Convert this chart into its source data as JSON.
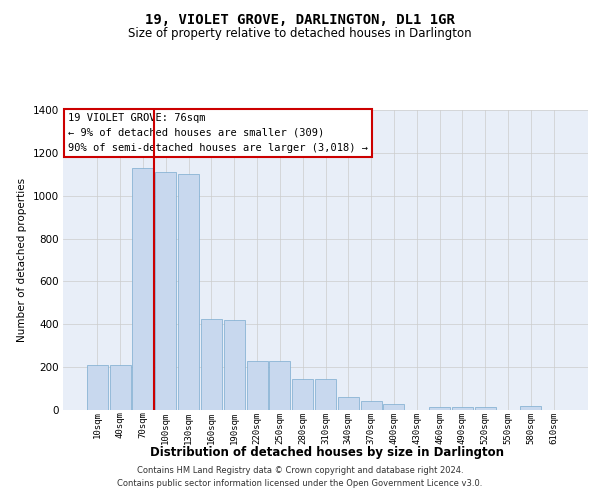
{
  "title": "19, VIOLET GROVE, DARLINGTON, DL1 1GR",
  "subtitle": "Size of property relative to detached houses in Darlington",
  "xlabel": "Distribution of detached houses by size in Darlington",
  "ylabel": "Number of detached properties",
  "footer_line1": "Contains HM Land Registry data © Crown copyright and database right 2024.",
  "footer_line2": "Contains public sector information licensed under the Open Government Licence v3.0.",
  "annotation_line1": "19 VIOLET GROVE: 76sqm",
  "annotation_line2": "← 9% of detached houses are smaller (309)",
  "annotation_line3": "90% of semi-detached houses are larger (3,018) →",
  "bar_color": "#c8d8ee",
  "bar_edge_color": "#7aabcf",
  "grid_color": "#cccccc",
  "background_color": "#e8eef8",
  "vline_color": "#cc0000",
  "vline_x": 2.5,
  "annotation_box_edgecolor": "#cc0000",
  "categories": [
    "10sqm",
    "40sqm",
    "70sqm",
    "100sqm",
    "130sqm",
    "160sqm",
    "190sqm",
    "220sqm",
    "250sqm",
    "280sqm",
    "310sqm",
    "340sqm",
    "370sqm",
    "400sqm",
    "430sqm",
    "460sqm",
    "490sqm",
    "520sqm",
    "550sqm",
    "580sqm",
    "610sqm"
  ],
  "values": [
    210,
    210,
    1130,
    1110,
    1100,
    425,
    420,
    230,
    230,
    145,
    145,
    60,
    40,
    30,
    0,
    15,
    15,
    15,
    0,
    20,
    0
  ],
  "ylim": [
    0,
    1400
  ],
  "yticks": [
    0,
    200,
    400,
    600,
    800,
    1000,
    1200,
    1400
  ]
}
